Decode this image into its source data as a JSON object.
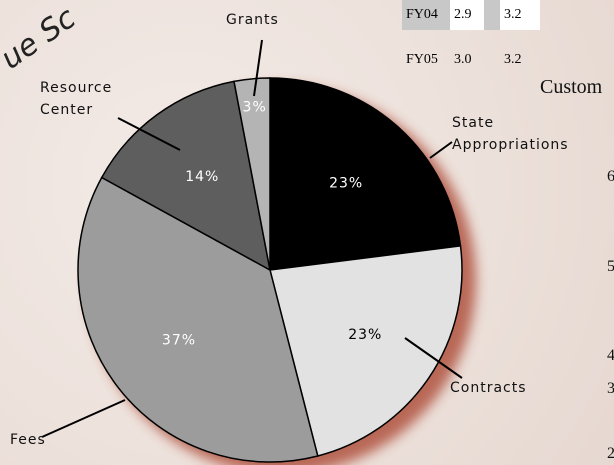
{
  "decor_text": "ue Sc",
  "table": {
    "rows": [
      [
        "FY04",
        "2.9",
        "3.2"
      ],
      [
        "FY05",
        "3.0",
        "3.2"
      ]
    ],
    "caption": "Custom"
  },
  "side_axis": [
    "6",
    "5",
    "4",
    "3",
    "2"
  ],
  "chart_data": {
    "type": "pie",
    "categories": [
      "State Appropriations",
      "Contracts",
      "Fees",
      "Resource Center",
      "Grants"
    ],
    "values": [
      23,
      23,
      37,
      14,
      3
    ],
    "value_labels": [
      "23%",
      "23%",
      "37%",
      "14%",
      "3%"
    ],
    "colors": [
      "#000000",
      "#e2e2e2",
      "#9c9c9c",
      "#5e5e5e",
      "#b4b4b4"
    ]
  }
}
